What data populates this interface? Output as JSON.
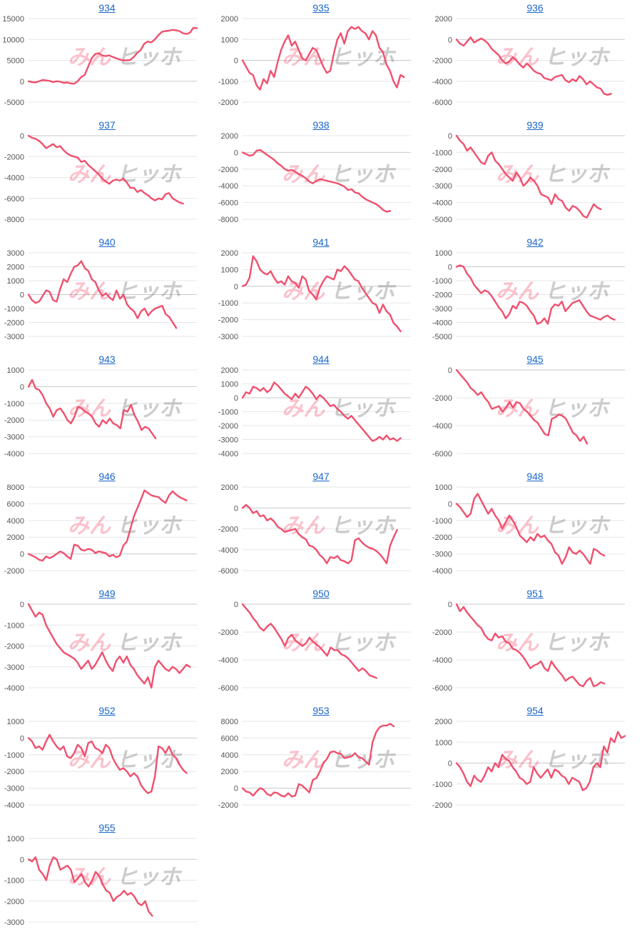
{
  "chart_data": [
    {
      "title": "934",
      "type": "line",
      "yticks": [
        15000,
        10000,
        5000,
        0,
        -5000
      ],
      "ylim": [
        -5000,
        15000
      ],
      "values": [
        0,
        -200,
        -300,
        0,
        300,
        200,
        100,
        -200,
        0,
        -100,
        -400,
        -300,
        -500,
        -600,
        0,
        1000,
        1500,
        3500,
        5500,
        6500,
        6700,
        6200,
        6000,
        6200,
        5800,
        5500,
        5200,
        5000,
        5000,
        5100,
        5800,
        6800,
        7500,
        9000,
        9500,
        9300,
        10000,
        11000,
        11800,
        12000,
        12100,
        12300,
        12200,
        12000,
        11500,
        11300,
        11600,
        12800,
        12700
      ]
    },
    {
      "title": "935",
      "type": "line",
      "yticks": [
        2000,
        1000,
        0,
        -1000,
        -2000
      ],
      "ylim": [
        -2000,
        2000
      ],
      "values": [
        0,
        -300,
        -600,
        -700,
        -1200,
        -1400,
        -900,
        -1100,
        -500,
        -800,
        -100,
        500,
        900,
        1200,
        700,
        900,
        500,
        100,
        0,
        300,
        600,
        500,
        100,
        -300,
        -600,
        -500,
        300,
        1000,
        1300,
        800,
        1400,
        1600,
        1500,
        1600,
        1400,
        1300,
        1000,
        1400,
        1200,
        600,
        400,
        -200,
        -500,
        -1000,
        -1300,
        -700,
        -800
      ]
    },
    {
      "title": "936",
      "type": "line",
      "yticks": [
        2000,
        0,
        -2000,
        -4000,
        -6000
      ],
      "ylim": [
        -6000,
        2000
      ],
      "values": [
        0,
        -400,
        -600,
        -200,
        200,
        -300,
        -100,
        100,
        -100,
        -400,
        -900,
        -1200,
        -1500,
        -2000,
        -2300,
        -2100,
        -1700,
        -2000,
        -2400,
        -2700,
        -2300,
        -2600,
        -3000,
        -3200,
        -3300,
        -3700,
        -3800,
        -3900,
        -3600,
        -3500,
        -3400,
        -3900,
        -4100,
        -3800,
        -4000,
        -3500,
        -3800,
        -4300,
        -4000,
        -4300,
        -4600,
        -4700,
        -5200,
        -5300,
        -5200
      ]
    },
    {
      "title": "937",
      "type": "line",
      "yticks": [
        0,
        -2000,
        -4000,
        -6000,
        -8000
      ],
      "ylim": [
        -8000,
        0
      ],
      "values": [
        0,
        -200,
        -300,
        -500,
        -800,
        -1200,
        -1000,
        -800,
        -1100,
        -1000,
        -1400,
        -1700,
        -1900,
        -2000,
        -2100,
        -2500,
        -2400,
        -2800,
        -3100,
        -3400,
        -3700,
        -4100,
        -4400,
        -4600,
        -4300,
        -4200,
        -4300,
        -4100,
        -4500,
        -5000,
        -5000,
        -5400,
        -5200,
        -5500,
        -5700,
        -6000,
        -6200,
        -6000,
        -6100,
        -5600,
        -5500,
        -6000,
        -6200,
        -6400,
        -6500
      ]
    },
    {
      "title": "938",
      "type": "line",
      "yticks": [
        2000,
        0,
        -2000,
        -4000,
        -6000,
        -8000
      ],
      "ylim": [
        -8000,
        2000
      ],
      "values": [
        0,
        -200,
        -400,
        -300,
        200,
        300,
        0,
        -300,
        -600,
        -900,
        -1300,
        -1600,
        -2000,
        -2200,
        -2100,
        -2300,
        -2600,
        -2800,
        -3100,
        -3500,
        -3700,
        -3400,
        -3200,
        -3300,
        -3400,
        -3500,
        -3600,
        -3700,
        -3900,
        -4100,
        -4500,
        -4400,
        -4800,
        -4900,
        -5300,
        -5600,
        -5800,
        -6000,
        -6200,
        -6500,
        -6900,
        -7100,
        -7000
      ]
    },
    {
      "title": "939",
      "type": "line",
      "yticks": [
        0,
        -1000,
        -2000,
        -3000,
        -4000,
        -5000
      ],
      "ylim": [
        -5000,
        0
      ],
      "values": [
        0,
        -300,
        -500,
        -900,
        -700,
        -1000,
        -1300,
        -1600,
        -1700,
        -1200,
        -1000,
        -1500,
        -1700,
        -2000,
        -2300,
        -2500,
        -2700,
        -2200,
        -2500,
        -3000,
        -2800,
        -2500,
        -2700,
        -3000,
        -3500,
        -3600,
        -3700,
        -4100,
        -3500,
        -3800,
        -3900,
        -4300,
        -4500,
        -4200,
        -4300,
        -4500,
        -4800,
        -4900,
        -4500,
        -4100,
        -4300,
        -4400
      ]
    },
    {
      "title": "940",
      "type": "line",
      "yticks": [
        3000,
        2000,
        1000,
        0,
        -1000,
        -2000,
        -3000
      ],
      "ylim": [
        -3000,
        3000
      ],
      "values": [
        0,
        -400,
        -600,
        -500,
        -100,
        300,
        200,
        -400,
        -500,
        400,
        1100,
        900,
        1500,
        2000,
        2100,
        2400,
        1900,
        1700,
        1100,
        900,
        300,
        -100,
        100,
        -200,
        -400,
        300,
        -300,
        0,
        -700,
        -1000,
        -1200,
        -1700,
        -1200,
        -1000,
        -1500,
        -1200,
        -1000,
        -900,
        -800,
        -1400,
        -1600,
        -2000,
        -2400
      ]
    },
    {
      "title": "941",
      "type": "line",
      "yticks": [
        2000,
        1000,
        0,
        -1000,
        -2000,
        -3000
      ],
      "ylim": [
        -3000,
        2000
      ],
      "values": [
        0,
        100,
        500,
        1800,
        1500,
        1000,
        800,
        700,
        900,
        500,
        200,
        300,
        100,
        600,
        300,
        200,
        -100,
        600,
        400,
        -300,
        -500,
        -800,
        -100,
        300,
        600,
        500,
        400,
        1000,
        900,
        1200,
        1000,
        700,
        400,
        300,
        -100,
        -400,
        -700,
        -1000,
        -1100,
        -1600,
        -1100,
        -1500,
        -1700,
        -2200,
        -2400,
        -2700
      ]
    },
    {
      "title": "942",
      "type": "line",
      "yticks": [
        1000,
        0,
        -1000,
        -2000,
        -3000,
        -4000,
        -5000
      ],
      "ylim": [
        -5000,
        1000
      ],
      "values": [
        0,
        100,
        0,
        -500,
        -800,
        -1300,
        -1600,
        -1900,
        -1700,
        -1800,
        -2100,
        -2500,
        -2900,
        -3200,
        -3700,
        -3400,
        -2800,
        -3000,
        -2500,
        -2600,
        -2800,
        -3200,
        -3500,
        -4100,
        -4000,
        -3700,
        -4100,
        -3000,
        -2700,
        -2800,
        -2500,
        -3200,
        -2900,
        -2600,
        -2500,
        -2400,
        -2800,
        -3200,
        -3500,
        -3600,
        -3700,
        -3800,
        -3600,
        -3500,
        -3700,
        -3800
      ]
    },
    {
      "title": "943",
      "type": "line",
      "yticks": [
        1000,
        0,
        -1000,
        -2000,
        -3000,
        -4000
      ],
      "ylim": [
        -4000,
        1000
      ],
      "values": [
        0,
        400,
        -100,
        -200,
        -500,
        -1000,
        -1300,
        -1800,
        -1400,
        -1300,
        -1600,
        -2000,
        -2200,
        -1800,
        -1200,
        -1300,
        -1500,
        -1600,
        -1800,
        -2200,
        -2400,
        -2000,
        -2200,
        -1900,
        -2200,
        -2300,
        -2500,
        -1400,
        -1500,
        -1100,
        -1700,
        -2100,
        -2600,
        -2400,
        -2500,
        -2800,
        -3100
      ]
    },
    {
      "title": "944",
      "type": "line",
      "yticks": [
        2000,
        1000,
        0,
        -1000,
        -2000,
        -3000,
        -4000
      ],
      "ylim": [
        -4000,
        2000
      ],
      "values": [
        0,
        400,
        300,
        800,
        700,
        500,
        700,
        400,
        600,
        1100,
        900,
        600,
        300,
        100,
        -100,
        300,
        0,
        400,
        800,
        600,
        300,
        -100,
        200,
        0,
        -300,
        -600,
        -500,
        -800,
        -1000,
        -1300,
        -1500,
        -1300,
        -1600,
        -1900,
        -2200,
        -2500,
        -2800,
        -3100,
        -3000,
        -2800,
        -3000,
        -2700,
        -3000,
        -2900,
        -3100,
        -2900
      ]
    },
    {
      "title": "945",
      "type": "line",
      "yticks": [
        0,
        -2000,
        -4000,
        -6000
      ],
      "ylim": [
        -6000,
        0
      ],
      "values": [
        0,
        -300,
        -600,
        -900,
        -1300,
        -1500,
        -1800,
        -1600,
        -2000,
        -2300,
        -2800,
        -2700,
        -2600,
        -3000,
        -2700,
        -2300,
        -2700,
        -2300,
        -2400,
        -2800,
        -3000,
        -3300,
        -3600,
        -3800,
        -4200,
        -4600,
        -4700,
        -3500,
        -3400,
        -3200,
        -3300,
        -3500,
        -4000,
        -4500,
        -4700,
        -5100,
        -4800,
        -5300
      ]
    },
    {
      "title": "946",
      "type": "line",
      "yticks": [
        8000,
        6000,
        4000,
        2000,
        0,
        -2000
      ],
      "ylim": [
        -2000,
        8000
      ],
      "values": [
        0,
        -200,
        -400,
        -700,
        -800,
        -300,
        -500,
        -300,
        0,
        300,
        100,
        -300,
        -600,
        1100,
        1000,
        500,
        400,
        600,
        500,
        100,
        300,
        200,
        100,
        -300,
        -100,
        -400,
        -200,
        1000,
        1500,
        3000,
        4500,
        5500,
        6500,
        7600,
        7300,
        7000,
        6900,
        6800,
        6400,
        6100,
        7000,
        7500,
        7100,
        6800,
        6600,
        6400
      ]
    },
    {
      "title": "947",
      "type": "line",
      "yticks": [
        2000,
        0,
        -2000,
        -4000,
        -6000
      ],
      "ylim": [
        -6000,
        2000
      ],
      "values": [
        0,
        300,
        0,
        -500,
        -300,
        -800,
        -700,
        -1200,
        -1000,
        -1300,
        -1800,
        -2000,
        -2300,
        -2200,
        -2100,
        -2000,
        -2500,
        -2800,
        -3000,
        -3600,
        -3700,
        -4000,
        -4500,
        -4800,
        -5300,
        -4700,
        -4800,
        -4600,
        -5000,
        -5100,
        -5300,
        -5000,
        -3100,
        -2900,
        -3300,
        -3600,
        -3800,
        -3900,
        -4100,
        -4400,
        -4800,
        -5300,
        -3600,
        -2800,
        -2100
      ]
    },
    {
      "title": "948",
      "type": "line",
      "yticks": [
        1000,
        0,
        -1000,
        -2000,
        -3000,
        -4000
      ],
      "ylim": [
        -4000,
        1000
      ],
      "values": [
        0,
        -200,
        -500,
        -800,
        -600,
        300,
        600,
        200,
        -200,
        -600,
        -300,
        -700,
        -1000,
        -1500,
        -1100,
        -700,
        -1000,
        -1400,
        -1900,
        -2100,
        -2300,
        -2000,
        -2200,
        -1800,
        -2000,
        -1900,
        -2200,
        -2400,
        -2900,
        -3100,
        -3600,
        -3200,
        -2600,
        -2900,
        -3000,
        -2800,
        -3000,
        -3300,
        -3600,
        -2700,
        -2800,
        -3000,
        -3100
      ]
    },
    {
      "title": "949",
      "type": "line",
      "yticks": [
        0,
        -1000,
        -2000,
        -3000,
        -4000
      ],
      "ylim": [
        -4000,
        0
      ],
      "values": [
        0,
        -300,
        -600,
        -400,
        -500,
        -1000,
        -1300,
        -1600,
        -1900,
        -2100,
        -2300,
        -2400,
        -2500,
        -2600,
        -2800,
        -3100,
        -2900,
        -2700,
        -3100,
        -2900,
        -2600,
        -2300,
        -2700,
        -3000,
        -3200,
        -2700,
        -2500,
        -2800,
        -2500,
        -2900,
        -3100,
        -3400,
        -3600,
        -3800,
        -3500,
        -4000,
        -3000,
        -2700,
        -2900,
        -3100,
        -3200,
        -3000,
        -3100,
        -3300,
        -3100,
        -2900,
        -3000
      ]
    },
    {
      "title": "950",
      "type": "line",
      "yticks": [
        0,
        -2000,
        -4000,
        -6000
      ],
      "ylim": [
        -6000,
        0
      ],
      "values": [
        0,
        -300,
        -600,
        -1000,
        -1300,
        -1700,
        -1900,
        -1600,
        -1400,
        -1700,
        -2100,
        -2500,
        -3000,
        -2400,
        -2200,
        -2600,
        -2800,
        -3000,
        -2800,
        -2400,
        -2700,
        -2900,
        -3100,
        -3400,
        -3700,
        -3100,
        -3300,
        -3300,
        -3600,
        -3700,
        -3900,
        -4200,
        -4500,
        -4800,
        -4600,
        -4800,
        -5100,
        -5200,
        -5300
      ]
    },
    {
      "title": "951",
      "type": "line",
      "yticks": [
        0,
        -2000,
        -4000,
        -6000
      ],
      "ylim": [
        -6000,
        0
      ],
      "values": [
        0,
        -500,
        -200,
        -600,
        -900,
        -1200,
        -1500,
        -1700,
        -2200,
        -2500,
        -2600,
        -2100,
        -2400,
        -2300,
        -2700,
        -2800,
        -3200,
        -3300,
        -3500,
        -3800,
        -4200,
        -4600,
        -4400,
        -4300,
        -4100,
        -4600,
        -4800,
        -4100,
        -4500,
        -4800,
        -5100,
        -5500,
        -5300,
        -5200,
        -5500,
        -5800,
        -5900,
        -5500,
        -5300,
        -5900,
        -5800,
        -5600,
        -5700
      ]
    },
    {
      "title": "952",
      "type": "line",
      "yticks": [
        1000,
        0,
        -1000,
        -2000,
        -3000,
        -4000
      ],
      "ylim": [
        -4000,
        1000
      ],
      "values": [
        0,
        -200,
        -600,
        -500,
        -700,
        -200,
        200,
        -200,
        -500,
        -700,
        -500,
        -1100,
        -1200,
        -900,
        -400,
        -600,
        -1100,
        -300,
        -200,
        -600,
        -700,
        -900,
        -400,
        -600,
        -1200,
        -1600,
        -1900,
        -1800,
        -2000,
        -2300,
        -2100,
        -2300,
        -2800,
        -3100,
        -3300,
        -3200,
        -2300,
        -500,
        -600,
        -900,
        -500,
        -1000,
        -1200,
        -1600,
        -1900,
        -2100
      ]
    },
    {
      "title": "953",
      "type": "line",
      "yticks": [
        8000,
        6000,
        4000,
        2000,
        0,
        -2000
      ],
      "ylim": [
        -2000,
        8000
      ],
      "values": [
        0,
        -400,
        -500,
        -900,
        -400,
        0,
        -200,
        -700,
        -900,
        -500,
        -600,
        -900,
        -1000,
        -600,
        -1000,
        -900,
        500,
        300,
        -100,
        -500,
        1000,
        1200,
        2000,
        3000,
        3500,
        4300,
        4400,
        4200,
        4100,
        3600,
        3700,
        3800,
        4200,
        3700,
        3600,
        3200,
        2800,
        5500,
        6700,
        7300,
        7500,
        7500,
        7700,
        7400
      ]
    },
    {
      "title": "954",
      "type": "line",
      "yticks": [
        2000,
        1000,
        0,
        -1000,
        -2000
      ],
      "ylim": [
        -2000,
        2000
      ],
      "values": [
        0,
        -200,
        -500,
        -900,
        -1100,
        -600,
        -800,
        -900,
        -600,
        -200,
        -400,
        0,
        -200,
        400,
        200,
        100,
        -200,
        -400,
        -700,
        -800,
        -1000,
        -900,
        -200,
        -500,
        -700,
        -500,
        -300,
        -700,
        -300,
        -400,
        -600,
        -700,
        -1000,
        -700,
        -800,
        -900,
        -1300,
        -1200,
        -900,
        -200,
        0,
        -200,
        800,
        500,
        1200,
        1000,
        1500,
        1200,
        1300
      ]
    },
    {
      "title": "955",
      "type": "line",
      "yticks": [
        1000,
        0,
        -1000,
        -2000,
        -3000
      ],
      "ylim": [
        -3000,
        1000
      ],
      "values": [
        0,
        -100,
        100,
        -500,
        -700,
        -1000,
        -300,
        100,
        0,
        -500,
        -400,
        -300,
        -500,
        -1100,
        -900,
        -700,
        -1100,
        -1300,
        -1000,
        -600,
        -800,
        -1200,
        -1500,
        -1600,
        -2000,
        -1800,
        -1700,
        -1500,
        -1700,
        -1600,
        -1800,
        -2100,
        -2200,
        -2000,
        -2500,
        -2700
      ]
    }
  ],
  "watermark": {
    "colored": "みん",
    "gray": "ヒッホ"
  },
  "colors": {
    "line": "#f0506e",
    "link": "#1a66cc",
    "grid": "#e6e6e6"
  }
}
